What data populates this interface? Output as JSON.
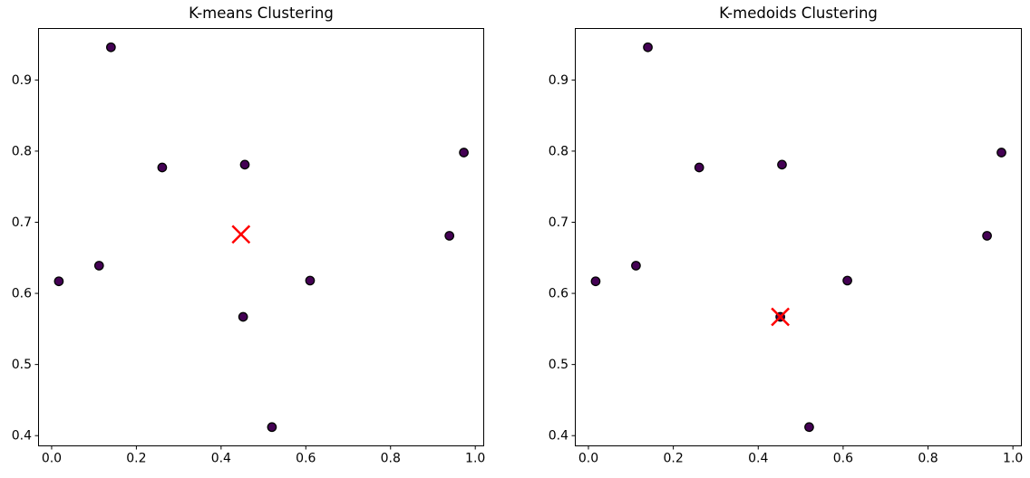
{
  "figure": {
    "background": "#ffffff",
    "spine_color": "#000000",
    "tick_color": "#000000",
    "text_color": "#000000"
  },
  "chart_data": [
    {
      "type": "scatter",
      "title": "K-means Clustering",
      "points": [
        [
          0.14,
          0.946
        ],
        [
          0.261,
          0.777
        ],
        [
          0.456,
          0.781
        ],
        [
          0.973,
          0.798
        ],
        [
          0.939,
          0.681
        ],
        [
          0.017,
          0.617
        ],
        [
          0.112,
          0.639
        ],
        [
          0.61,
          0.618
        ],
        [
          0.452,
          0.567
        ],
        [
          0.52,
          0.412
        ]
      ],
      "point_color": "#440154",
      "point_edge_color": "#000000",
      "center_marker": {
        "shape": "x",
        "color": "#ff0000",
        "x": 0.447,
        "y": 0.683
      },
      "xtick_values": [
        0.0,
        0.2,
        0.4,
        0.6,
        0.8,
        1.0
      ],
      "xtick_labels": [
        "0.0",
        "0.2",
        "0.4",
        "0.6",
        "0.8",
        "1.0"
      ],
      "ytick_values": [
        0.4,
        0.5,
        0.6,
        0.7,
        0.8,
        0.9
      ],
      "ytick_labels": [
        "0.4",
        "0.5",
        "0.6",
        "0.7",
        "0.8",
        "0.9"
      ],
      "xlim": [
        -0.032,
        1.021
      ],
      "ylim": [
        0.385,
        0.973
      ],
      "grid": false,
      "xlabel": "",
      "ylabel": ""
    },
    {
      "type": "scatter",
      "title": "K-medoids Clustering",
      "points": [
        [
          0.14,
          0.946
        ],
        [
          0.261,
          0.777
        ],
        [
          0.456,
          0.781
        ],
        [
          0.973,
          0.798
        ],
        [
          0.939,
          0.681
        ],
        [
          0.017,
          0.617
        ],
        [
          0.112,
          0.639
        ],
        [
          0.61,
          0.618
        ],
        [
          0.452,
          0.567
        ],
        [
          0.52,
          0.412
        ]
      ],
      "point_color": "#440154",
      "point_edge_color": "#000000",
      "center_marker": {
        "shape": "x",
        "color": "#ff0000",
        "x": 0.452,
        "y": 0.567
      },
      "xtick_values": [
        0.0,
        0.2,
        0.4,
        0.6,
        0.8,
        1.0
      ],
      "xtick_labels": [
        "0.0",
        "0.2",
        "0.4",
        "0.6",
        "0.8",
        "1.0"
      ],
      "ytick_values": [
        0.4,
        0.5,
        0.6,
        0.7,
        0.8,
        0.9
      ],
      "ytick_labels": [
        "0.4",
        "0.5",
        "0.6",
        "0.7",
        "0.8",
        "0.9"
      ],
      "xlim": [
        -0.032,
        1.021
      ],
      "ylim": [
        0.385,
        0.973
      ],
      "grid": false,
      "xlabel": "",
      "ylabel": ""
    }
  ]
}
